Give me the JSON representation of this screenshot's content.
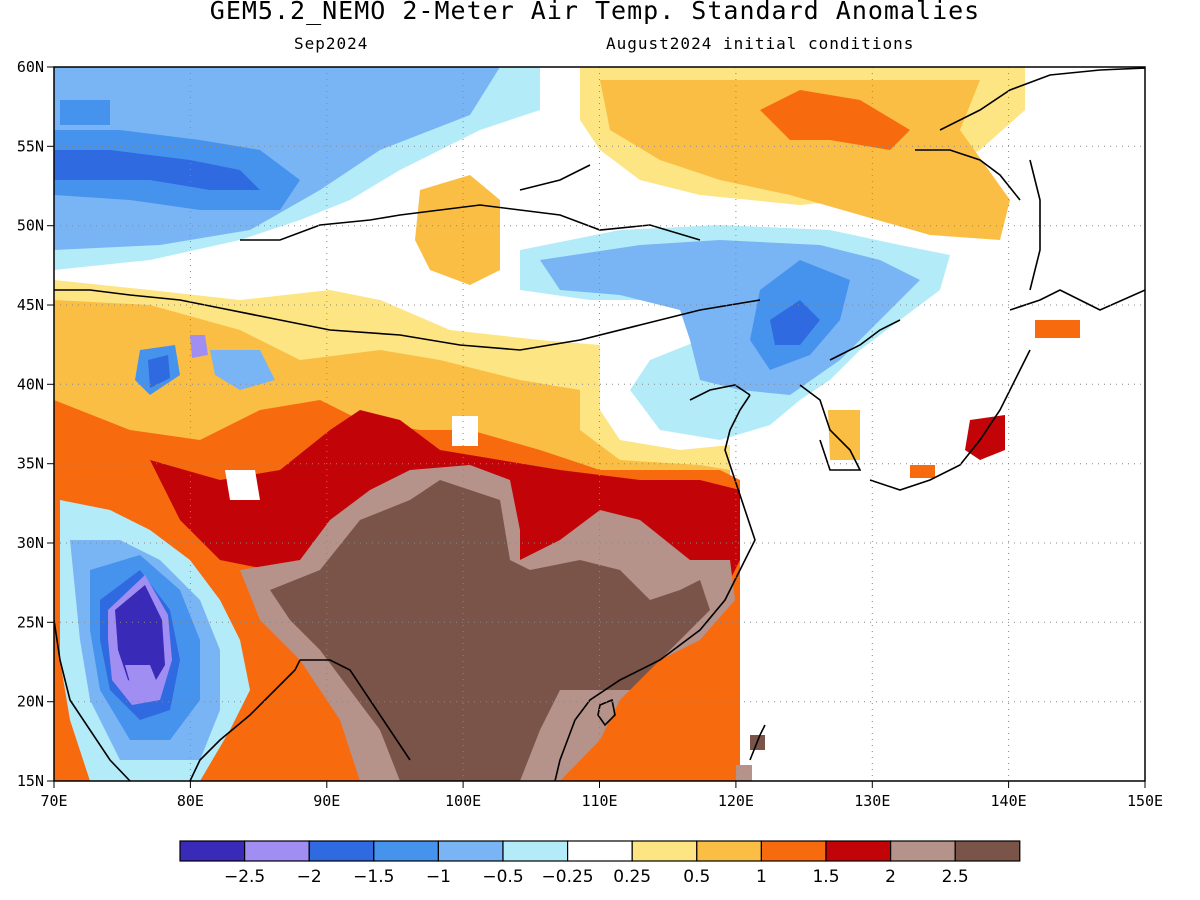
{
  "title": "GEM5.2_NEMO 2-Meter Air Temp. Standard Anomalies",
  "subtitle_left": "Sep2024",
  "subtitle_right": "August2024 initial conditions",
  "map": {
    "lon_ticks": [
      "70E",
      "80E",
      "90E",
      "100E",
      "110E",
      "120E",
      "130E",
      "140E",
      "150E"
    ],
    "lat_ticks": [
      "60N",
      "55N",
      "50N",
      "45N",
      "40N",
      "35N",
      "30N",
      "25N",
      "20N",
      "15N"
    ],
    "lon_range": [
      70,
      150
    ],
    "lat_range": [
      15,
      60
    ],
    "grid": "dotted"
  },
  "colorbar": {
    "colors": [
      "#3a2ab8",
      "#a18ef2",
      "#2f6ae0",
      "#4693ee",
      "#79b5f4",
      "#b3ecf8",
      "#ffffff",
      "#fde583",
      "#fbbe44",
      "#f86a0e",
      "#c20408",
      "#b5928a",
      "#7a5448"
    ],
    "labels": [
      "−2.5",
      "−2",
      "−1.5",
      "−1",
      "−0.5",
      "−0.25",
      "0.25",
      "0.5",
      "1",
      "1.5",
      "2",
      "2.5"
    ]
  }
}
